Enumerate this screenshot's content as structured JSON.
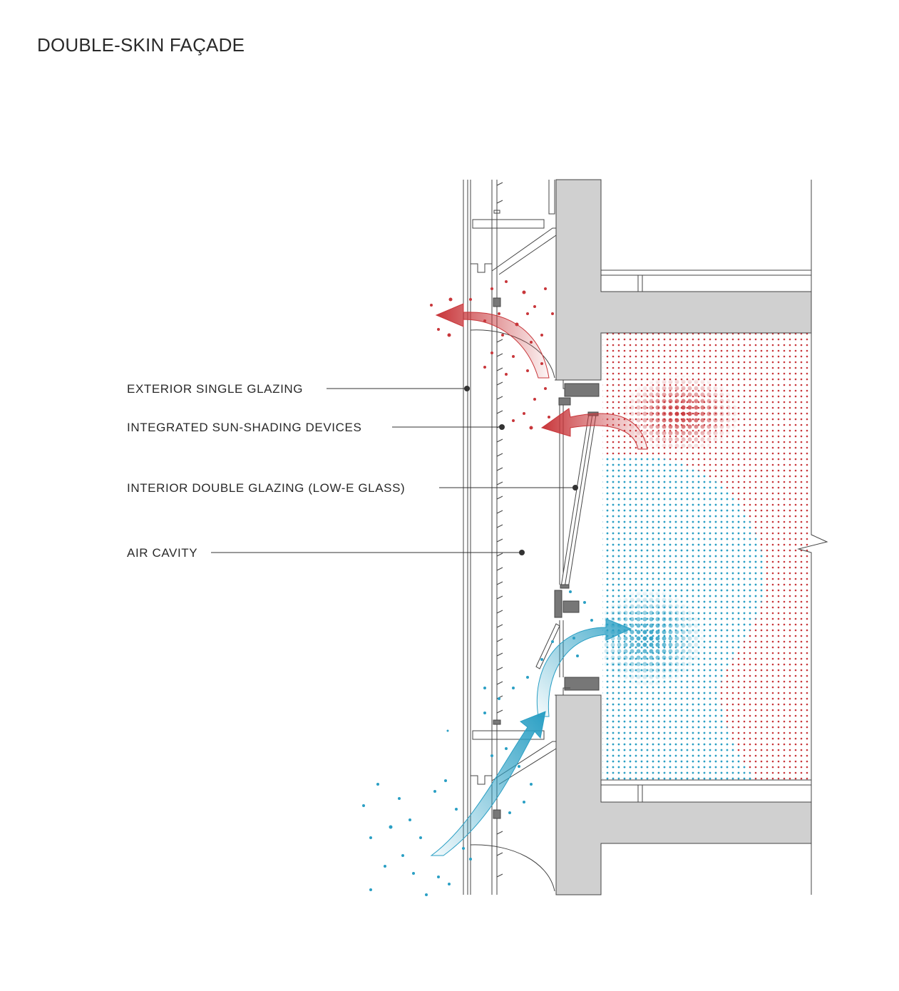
{
  "title": "DOUBLE-SKIN FAÇADE",
  "labels": [
    {
      "id": "exterior-single-glazing",
      "text": "EXTERIOR SINGLE GLAZING"
    },
    {
      "id": "integrated-sun-shading",
      "text": "INTEGRATED SUN-SHADING DEVICES"
    },
    {
      "id": "interior-double-glazing",
      "text": "INTERIOR DOUBLE GLAZING (LOW-E GLASS)"
    },
    {
      "id": "air-cavity",
      "text": "AIR CAVITY"
    }
  ],
  "colors": {
    "warm_air": "#c8363a",
    "cool_air": "#2a9fc4",
    "concrete": "#d0d0d0",
    "line": "#333333",
    "text": "#2a2a2a"
  }
}
